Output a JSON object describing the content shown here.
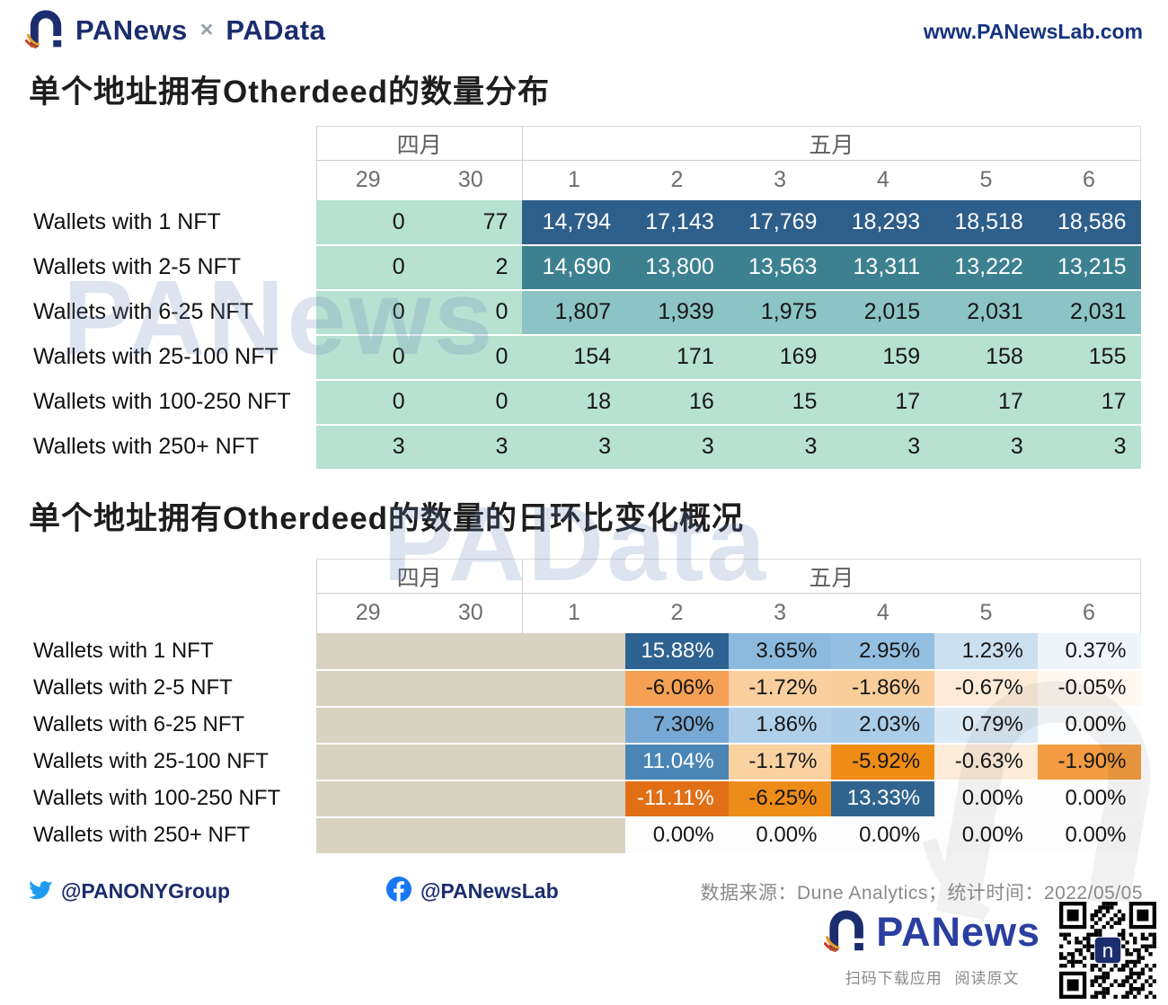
{
  "header": {
    "brand": "PANews",
    "times": "×",
    "partner": "PAData",
    "website": "www.PANewsLab.com"
  },
  "titles": {
    "table1": "单个地址拥有Otherdeed的数量分布",
    "table2": "单个地址拥有Otherdeed的数量的日环比变化概况"
  },
  "watermarks": {
    "first": "PANews",
    "second": "PAData"
  },
  "footer": {
    "twitter_handle": "@PANONYGroup",
    "facebook_handle": "@PANewsLab",
    "source": "数据来源：Dune Analytics；统计时间：2022/05/05",
    "brand": "PANews",
    "tagline": "扫码下载应用 阅读原文"
  },
  "colors": {
    "navy": "#1b2d6e",
    "mint": "#b7e1d1",
    "beige": "#d8d3c1",
    "dark_blue_cell": "#2e5e8a",
    "teal_cell": "#3d8190",
    "light_teal_cell": "#8cc3c4",
    "orange_dark": "#e06f16",
    "twitter_blue": "#1d9bf0",
    "facebook_blue": "#1877f2"
  },
  "chart_data": [
    {
      "type": "heatmap",
      "title": "单个地址拥有Otherdeed的数量分布",
      "month_groups": [
        {
          "label": "四月",
          "span": 2
        },
        {
          "label": "五月",
          "span": 6
        }
      ],
      "columns": [
        "29",
        "30",
        "1",
        "2",
        "3",
        "4",
        "5",
        "6"
      ],
      "rows": [
        {
          "label": "Wallets with 1 NFT",
          "cells": [
            {
              "v": "0",
              "bg": "#b7e1d1",
              "fg": "#161616"
            },
            {
              "v": "77",
              "bg": "#b7e1d1",
              "fg": "#161616"
            },
            {
              "v": "14,794",
              "bg": "#2e5e8a",
              "fg": "#ffffff"
            },
            {
              "v": "17,143",
              "bg": "#2e5e8a",
              "fg": "#ffffff"
            },
            {
              "v": "17,769",
              "bg": "#2e5e8a",
              "fg": "#ffffff"
            },
            {
              "v": "18,293",
              "bg": "#2e5e8a",
              "fg": "#ffffff"
            },
            {
              "v": "18,518",
              "bg": "#2e5e8a",
              "fg": "#ffffff"
            },
            {
              "v": "18,586",
              "bg": "#2e5e8a",
              "fg": "#ffffff"
            }
          ]
        },
        {
          "label": "Wallets with 2-5 NFT",
          "cells": [
            {
              "v": "0",
              "bg": "#b7e1d1",
              "fg": "#161616"
            },
            {
              "v": "2",
              "bg": "#b7e1d1",
              "fg": "#161616"
            },
            {
              "v": "14,690",
              "bg": "#3d8190",
              "fg": "#ffffff"
            },
            {
              "v": "13,800",
              "bg": "#3d8190",
              "fg": "#ffffff"
            },
            {
              "v": "13,563",
              "bg": "#3d8190",
              "fg": "#ffffff"
            },
            {
              "v": "13,311",
              "bg": "#3d8190",
              "fg": "#ffffff"
            },
            {
              "v": "13,222",
              "bg": "#3d8190",
              "fg": "#ffffff"
            },
            {
              "v": "13,215",
              "bg": "#3d8190",
              "fg": "#ffffff"
            }
          ]
        },
        {
          "label": "Wallets with 6-25 NFT",
          "cells": [
            {
              "v": "0",
              "bg": "#b7e1d1",
              "fg": "#161616"
            },
            {
              "v": "0",
              "bg": "#b7e1d1",
              "fg": "#161616"
            },
            {
              "v": "1,807",
              "bg": "#8cc3c4",
              "fg": "#161616"
            },
            {
              "v": "1,939",
              "bg": "#8cc3c4",
              "fg": "#161616"
            },
            {
              "v": "1,975",
              "bg": "#8cc3c4",
              "fg": "#161616"
            },
            {
              "v": "2,015",
              "bg": "#8cc3c4",
              "fg": "#161616"
            },
            {
              "v": "2,031",
              "bg": "#8cc3c4",
              "fg": "#161616"
            },
            {
              "v": "2,031",
              "bg": "#8cc3c4",
              "fg": "#161616"
            }
          ]
        },
        {
          "label": "Wallets with 25-100 NFT",
          "cells": [
            {
              "v": "0",
              "bg": "#b7e1d1",
              "fg": "#161616"
            },
            {
              "v": "0",
              "bg": "#b7e1d1",
              "fg": "#161616"
            },
            {
              "v": "154",
              "bg": "#b7e1d1",
              "fg": "#161616"
            },
            {
              "v": "171",
              "bg": "#b7e1d1",
              "fg": "#161616"
            },
            {
              "v": "169",
              "bg": "#b7e1d1",
              "fg": "#161616"
            },
            {
              "v": "159",
              "bg": "#b7e1d1",
              "fg": "#161616"
            },
            {
              "v": "158",
              "bg": "#b7e1d1",
              "fg": "#161616"
            },
            {
              "v": "155",
              "bg": "#b7e1d1",
              "fg": "#161616"
            }
          ]
        },
        {
          "label": "Wallets with 100-250 NFT",
          "cells": [
            {
              "v": "0",
              "bg": "#b7e1d1",
              "fg": "#161616"
            },
            {
              "v": "0",
              "bg": "#b7e1d1",
              "fg": "#161616"
            },
            {
              "v": "18",
              "bg": "#b7e1d1",
              "fg": "#161616"
            },
            {
              "v": "16",
              "bg": "#b7e1d1",
              "fg": "#161616"
            },
            {
              "v": "15",
              "bg": "#b7e1d1",
              "fg": "#161616"
            },
            {
              "v": "17",
              "bg": "#b7e1d1",
              "fg": "#161616"
            },
            {
              "v": "17",
              "bg": "#b7e1d1",
              "fg": "#161616"
            },
            {
              "v": "17",
              "bg": "#b7e1d1",
              "fg": "#161616"
            }
          ]
        },
        {
          "label": "Wallets with 250+ NFT",
          "cells": [
            {
              "v": "3",
              "bg": "#b7e1d1",
              "fg": "#161616"
            },
            {
              "v": "3",
              "bg": "#b7e1d1",
              "fg": "#161616"
            },
            {
              "v": "3",
              "bg": "#b7e1d1",
              "fg": "#161616"
            },
            {
              "v": "3",
              "bg": "#b7e1d1",
              "fg": "#161616"
            },
            {
              "v": "3",
              "bg": "#b7e1d1",
              "fg": "#161616"
            },
            {
              "v": "3",
              "bg": "#b7e1d1",
              "fg": "#161616"
            },
            {
              "v": "3",
              "bg": "#b7e1d1",
              "fg": "#161616"
            },
            {
              "v": "3",
              "bg": "#b7e1d1",
              "fg": "#161616"
            }
          ]
        }
      ]
    },
    {
      "type": "heatmap",
      "title": "单个地址拥有Otherdeed的数量的日环比变化概况",
      "month_groups": [
        {
          "label": "四月",
          "span": 2
        },
        {
          "label": "五月",
          "span": 6
        }
      ],
      "columns": [
        "29",
        "30",
        "1",
        "2",
        "3",
        "4",
        "5",
        "6"
      ],
      "rows": [
        {
          "label": "Wallets with 1 NFT",
          "cells": [
            {
              "v": "",
              "bg": "#d8d3c1",
              "fg": "#161616"
            },
            {
              "v": "",
              "bg": "#d8d3c1",
              "fg": "#161616"
            },
            {
              "v": "",
              "bg": "#d8d3c1",
              "fg": "#161616"
            },
            {
              "v": "15.88%",
              "bg": "#2e6290",
              "fg": "#ffffff"
            },
            {
              "v": "3.65%",
              "bg": "#8cbade",
              "fg": "#161616"
            },
            {
              "v": "2.95%",
              "bg": "#93bfe1",
              "fg": "#161616"
            },
            {
              "v": "1.23%",
              "bg": "#cadff0",
              "fg": "#161616"
            },
            {
              "v": "0.37%",
              "bg": "#eff5fb",
              "fg": "#161616"
            }
          ]
        },
        {
          "label": "Wallets with 2-5 NFT",
          "cells": [
            {
              "v": "",
              "bg": "#d8d3c1",
              "fg": "#161616"
            },
            {
              "v": "",
              "bg": "#d8d3c1",
              "fg": "#161616"
            },
            {
              "v": "",
              "bg": "#d8d3c1",
              "fg": "#161616"
            },
            {
              "v": "-6.06%",
              "bg": "#f5a055",
              "fg": "#161616"
            },
            {
              "v": "-1.72%",
              "bg": "#f9cf9d",
              "fg": "#161616"
            },
            {
              "v": "-1.86%",
              "bg": "#f9cd99",
              "fg": "#161616"
            },
            {
              "v": "-0.67%",
              "bg": "#fdebd7",
              "fg": "#161616"
            },
            {
              "v": "-0.05%",
              "bg": "#fef8f1",
              "fg": "#161616"
            }
          ]
        },
        {
          "label": "Wallets with 6-25 NFT",
          "cells": [
            {
              "v": "",
              "bg": "#d8d3c1",
              "fg": "#161616"
            },
            {
              "v": "",
              "bg": "#d8d3c1",
              "fg": "#161616"
            },
            {
              "v": "",
              "bg": "#d8d3c1",
              "fg": "#161616"
            },
            {
              "v": "7.30%",
              "bg": "#78a9d4",
              "fg": "#161616"
            },
            {
              "v": "1.86%",
              "bg": "#b0d0e9",
              "fg": "#161616"
            },
            {
              "v": "2.03%",
              "bg": "#abcde8",
              "fg": "#161616"
            },
            {
              "v": "0.79%",
              "bg": "#dceaf5",
              "fg": "#161616"
            },
            {
              "v": "0.00%",
              "bg": "#fcfdfe",
              "fg": "#161616"
            }
          ]
        },
        {
          "label": "Wallets with 25-100 NFT",
          "cells": [
            {
              "v": "",
              "bg": "#d8d3c1",
              "fg": "#161616"
            },
            {
              "v": "",
              "bg": "#d8d3c1",
              "fg": "#161616"
            },
            {
              "v": "",
              "bg": "#d8d3c1",
              "fg": "#161616"
            },
            {
              "v": "11.04%",
              "bg": "#4a85b6",
              "fg": "#ffffff"
            },
            {
              "v": "-1.17%",
              "bg": "#fad2a1",
              "fg": "#161616"
            },
            {
              "v": "-5.92%",
              "bg": "#ef8c16",
              "fg": "#161616"
            },
            {
              "v": "-0.63%",
              "bg": "#fdecd9",
              "fg": "#161616"
            },
            {
              "v": "-1.90%",
              "bg": "#f39c41",
              "fg": "#161616"
            }
          ]
        },
        {
          "label": "Wallets with 100-250 NFT",
          "cells": [
            {
              "v": "",
              "bg": "#d8d3c1",
              "fg": "#161616"
            },
            {
              "v": "",
              "bg": "#d8d3c1",
              "fg": "#161616"
            },
            {
              "v": "",
              "bg": "#d8d3c1",
              "fg": "#161616"
            },
            {
              "v": "-11.11%",
              "bg": "#e06f16",
              "fg": "#ffffff"
            },
            {
              "v": "-6.25%",
              "bg": "#ee8c1a",
              "fg": "#161616"
            },
            {
              "v": "13.33%",
              "bg": "#30648f",
              "fg": "#ffffff"
            },
            {
              "v": "0.00%",
              "bg": "#fdfdfd",
              "fg": "#161616"
            },
            {
              "v": "0.00%",
              "bg": "#fdfdfd",
              "fg": "#161616"
            }
          ]
        },
        {
          "label": "Wallets with 250+ NFT",
          "cells": [
            {
              "v": "",
              "bg": "#d8d3c1",
              "fg": "#161616"
            },
            {
              "v": "",
              "bg": "#d8d3c1",
              "fg": "#161616"
            },
            {
              "v": "",
              "bg": "#d8d3c1",
              "fg": "#161616"
            },
            {
              "v": "0.00%",
              "bg": "#fdfdfd",
              "fg": "#161616"
            },
            {
              "v": "0.00%",
              "bg": "#fdfdfd",
              "fg": "#161616"
            },
            {
              "v": "0.00%",
              "bg": "#fdfdfd",
              "fg": "#161616"
            },
            {
              "v": "0.00%",
              "bg": "#fdfdfd",
              "fg": "#161616"
            },
            {
              "v": "0.00%",
              "bg": "#fdfdfd",
              "fg": "#161616"
            }
          ]
        }
      ]
    }
  ]
}
